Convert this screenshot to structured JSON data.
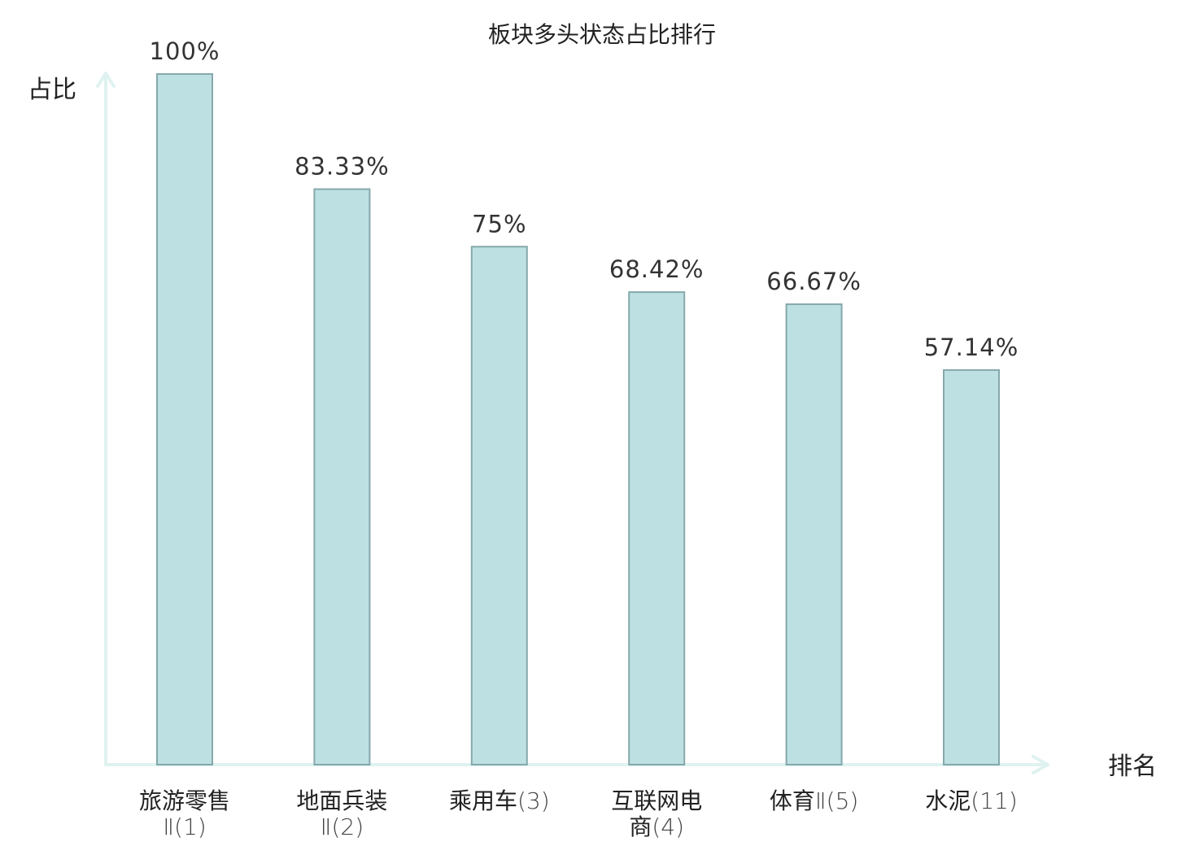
{
  "chart_data": {
    "type": "bar",
    "title": "板块多头状态占比排行",
    "ylabel": "占比",
    "xlabel": "排名",
    "ylim": [
      0,
      100
    ],
    "categories": [
      {
        "lines": [
          {
            "name": "旅游零售",
            "rank": ""
          },
          {
            "name": "",
            "rank": "Ⅱ(1)"
          }
        ],
        "highlight": false
      },
      {
        "lines": [
          {
            "name": "地面兵装",
            "rank": ""
          },
          {
            "name": "",
            "rank": "Ⅱ(2)"
          }
        ],
        "highlight": false
      },
      {
        "lines": [
          {
            "name": "乘用车",
            "rank": "(3)"
          }
        ],
        "highlight": false
      },
      {
        "lines": [
          {
            "name": "互联网电",
            "rank": ""
          },
          {
            "name": "商",
            "rank": "(4)"
          }
        ],
        "highlight": false
      },
      {
        "lines": [
          {
            "name": "体育",
            "rank": "Ⅱ(5)"
          }
        ],
        "highlight": false
      },
      {
        "lines": [
          {
            "name": "水泥",
            "rank": "(11)"
          }
        ],
        "highlight": true
      }
    ],
    "values": [
      100,
      83.33,
      75,
      68.42,
      66.67,
      57.14
    ],
    "value_labels": [
      "100%",
      "83.33%",
      "75%",
      "68.42%",
      "66.67%",
      "57.14%"
    ],
    "grid": false,
    "legend": "none"
  },
  "colors": {
    "bar_fill": "#bde0e3",
    "bar_stroke": "#85a8ac",
    "axis": "#dff2f0",
    "highlight_text": "#e02020"
  }
}
